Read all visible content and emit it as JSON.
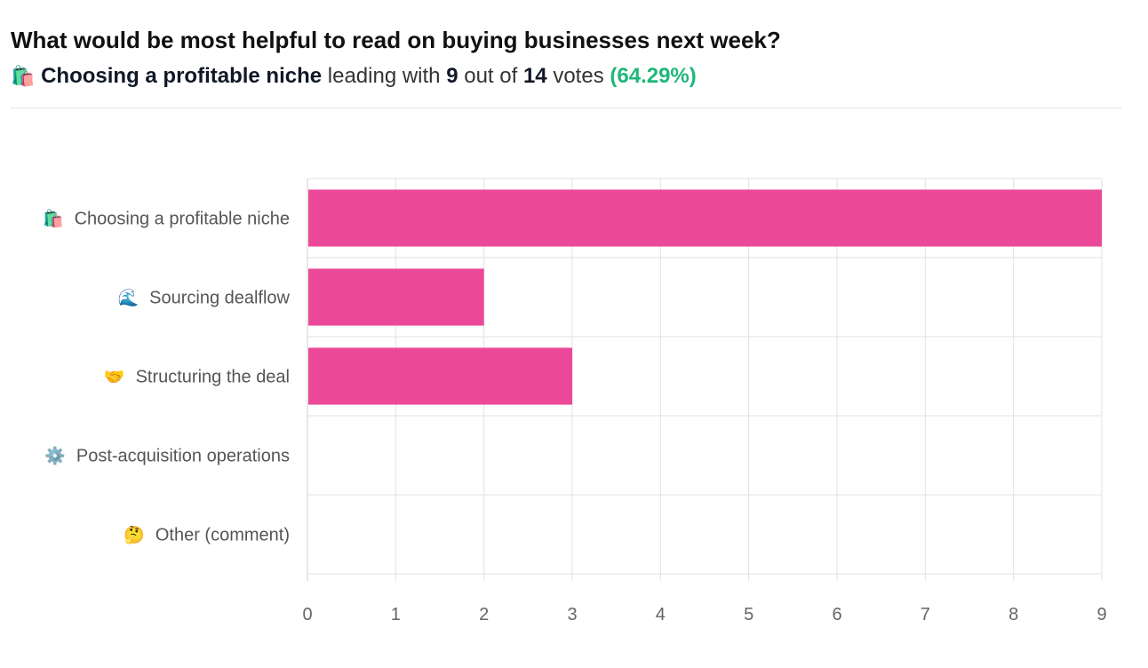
{
  "header": {
    "title": "What would be most helpful to read on buying businesses next week?",
    "leader_emoji": "🛍️",
    "leader_option": "Choosing a profitable niche",
    "leading_with": "leading with",
    "leader_votes": "9",
    "out_of": "out of",
    "total_votes": "14",
    "votes_word": "votes",
    "leader_percent": "(64.29%)"
  },
  "chart_data": {
    "type": "bar",
    "orientation": "horizontal",
    "categories": [
      "Choosing a profitable niche",
      "Sourcing dealflow",
      "Structuring the deal",
      "Post-acquisition operations",
      "Other (comment)"
    ],
    "category_emojis": [
      "🛍️",
      "🌊",
      "🤝",
      "⚙️",
      "🤔"
    ],
    "values": [
      9,
      2,
      3,
      0,
      0
    ],
    "xlim": [
      0,
      9
    ],
    "xticks": [
      0,
      1,
      2,
      3,
      4,
      5,
      6,
      7,
      8,
      9
    ],
    "grid": true,
    "bar_color": "#ec4899"
  }
}
